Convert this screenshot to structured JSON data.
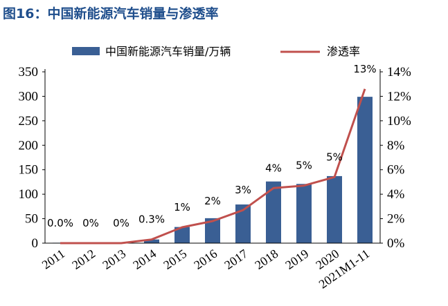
{
  "figure": {
    "title": "图16：中国新能源汽车销量与渗透率"
  },
  "chart_data": {
    "type": "bar+line",
    "categories": [
      "2011",
      "2012",
      "2013",
      "2014",
      "2015",
      "2016",
      "2017",
      "2018",
      "2019",
      "2020",
      "2021M1-11"
    ],
    "series": [
      {
        "name": "中国新能源汽车销量/万辆",
        "type": "bar",
        "axis": "left",
        "color": "#3a5f94",
        "values": [
          0.8,
          1.3,
          1.8,
          7.5,
          33,
          51,
          79,
          126,
          121,
          137,
          299
        ]
      },
      {
        "name": "渗透率",
        "type": "line",
        "axis": "right",
        "color": "#c0504d",
        "values": [
          0.0,
          0.0,
          0.0,
          0.3,
          1.3,
          1.8,
          2.7,
          4.5,
          4.7,
          5.4,
          12.6
        ],
        "labels": [
          "0.0%",
          "0%",
          "0%",
          "0.3%",
          "1%",
          "2%",
          "3%",
          "4%",
          "5%",
          "5%",
          "13%"
        ]
      }
    ],
    "y_left": {
      "min": 0,
      "max": 350,
      "ticks": [
        0,
        50,
        100,
        150,
        200,
        250,
        300,
        350
      ]
    },
    "y_right": {
      "min": 0,
      "max": 14,
      "ticks": [
        "0%",
        "2%",
        "4%",
        "6%",
        "8%",
        "10%",
        "12%",
        "14%"
      ]
    },
    "legend_position": "top-center",
    "grid": false
  }
}
